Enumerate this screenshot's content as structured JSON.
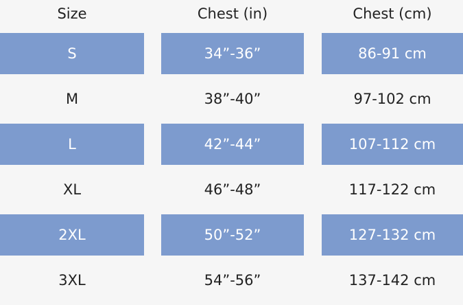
{
  "headers": [
    "Size",
    "Chest (in)",
    "Chest (cm)"
  ],
  "rows": [
    [
      "S",
      "34”-36”",
      "86-91 cm"
    ],
    [
      "M",
      "38”-40”",
      "97-102 cm"
    ],
    [
      "L",
      "42”-44”",
      "107-112 cm"
    ],
    [
      "XL",
      "46”-48”",
      "117-122 cm"
    ],
    [
      "2XL",
      "50”-52”",
      "127-132 cm"
    ],
    [
      "3XL",
      "54”-56”",
      "137-142 cm"
    ]
  ],
  "highlight_color": "#7d9bce"
}
